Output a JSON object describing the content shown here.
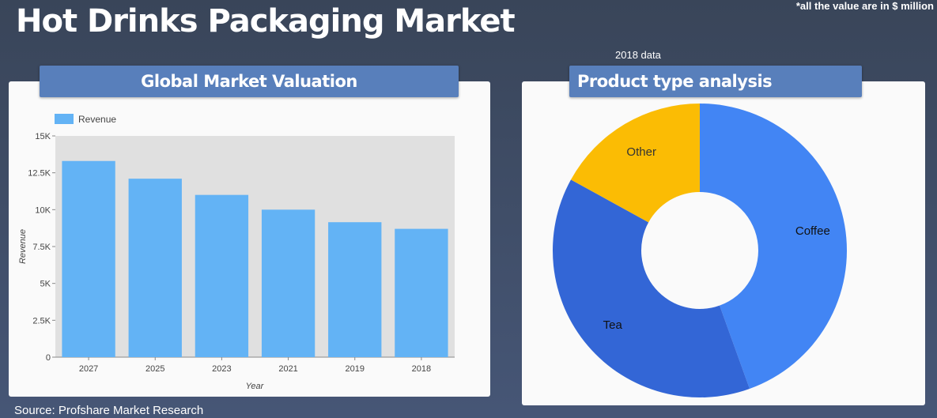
{
  "header": {
    "title": "Hot Drinks Packaging Market",
    "unit_note": "*all the value are in $ million",
    "data_year": "2018 data"
  },
  "footer": {
    "source": "Source: Profshare Market Research"
  },
  "colors": {
    "bar": "#63b3f5",
    "plot_background": "#e0e0e0",
    "banner": "#587fbb",
    "coffee": "#4285f4",
    "tea": "#3366d6",
    "other": "#fbbc04"
  },
  "chart_data": [
    {
      "type": "bar",
      "title": "Global Market Valuation",
      "legend": [
        "Revenue"
      ],
      "legend_position": "top-left",
      "xlabel": "Year",
      "ylabel": "Revenue",
      "categories": [
        "2027",
        "2025",
        "2023",
        "2021",
        "2019",
        "2018"
      ],
      "series": [
        {
          "name": "Revenue",
          "values": [
            13300,
            12100,
            11000,
            10000,
            9150,
            8700
          ]
        }
      ],
      "ylim": [
        0,
        15000
      ],
      "yticks": [
        0,
        2500,
        5000,
        7500,
        10000,
        12500,
        15000
      ],
      "ytick_labels": [
        "0",
        "2.5K",
        "5K",
        "7.5K",
        "10K",
        "12.5K",
        "15K"
      ],
      "grid": false
    },
    {
      "type": "pie",
      "donut": true,
      "title": "Product type analysis",
      "labels": [
        "Coffee",
        "Tea",
        "Other"
      ],
      "values": [
        44.5,
        38.5,
        17
      ]
    }
  ]
}
